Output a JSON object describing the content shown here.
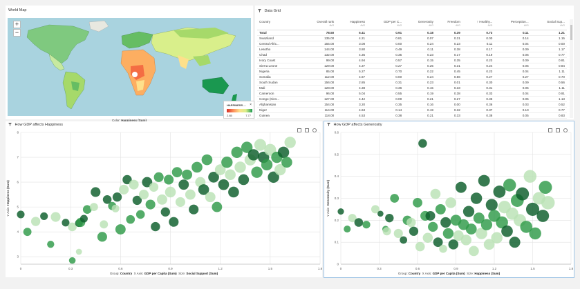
{
  "map": {
    "title": "World Map",
    "zoom_in": "+",
    "zoom_out": "−",
    "legend_title": "HAPPINESS ...",
    "legend_close": "×",
    "legend_min": "2.85",
    "legend_max": "7.77",
    "attribution": "Leaflet | © Op",
    "color_prefix": "Color:",
    "color_value": "Happiness (Sum)"
  },
  "grid": {
    "title": "Data Grid",
    "columns": [
      {
        "label": "Country",
        "agg": ""
      },
      {
        "label": "Overall rank",
        "agg": "AVG"
      },
      {
        "label": "Happiness",
        "agg": "AVG"
      },
      {
        "label": "GDP per C...",
        "agg": "AVG"
      },
      {
        "label": "Generosity",
        "agg": "AVG"
      },
      {
        "label": "Freedom",
        "agg": "AVG"
      },
      {
        "label": "↑ Healthy...",
        "agg": "AVG"
      },
      {
        "label": "Perception...",
        "agg": "AVG"
      },
      {
        "label": "Social Sup...",
        "agg": "AVG"
      }
    ],
    "rows": [
      [
        "Total",
        "78.50",
        "5.41",
        "0.91",
        "0.18",
        "0.39",
        "0.73",
        "0.11",
        "1.21"
      ],
      [
        "Swaziland",
        "135.00",
        "4.21",
        "0.81",
        "0.07",
        "0.31",
        "0.00",
        "0.14",
        "1.15"
      ],
      [
        "Central Afric...",
        "155.00",
        "3.08",
        "0.00",
        "0.24",
        "0.23",
        "0.11",
        "0.04",
        "0.00"
      ],
      [
        "Lesotho",
        "144.00",
        "3.80",
        "0.49",
        "0.11",
        "0.38",
        "0.17",
        "0.09",
        "1.17"
      ],
      [
        "Chad",
        "132.00",
        "4.35",
        "0.35",
        "0.23",
        "0.17",
        "0.19",
        "0.06",
        "0.77"
      ],
      [
        "Ivory Coast",
        "99.00",
        "4.94",
        "0.57",
        "0.15",
        "0.35",
        "0.23",
        "0.09",
        "0.81"
      ],
      [
        "Sierra Leone",
        "129.00",
        "4.37",
        "0.27",
        "0.25",
        "0.31",
        "0.24",
        "0.05",
        "0.84"
      ],
      [
        "Nigeria",
        "85.00",
        "5.27",
        "0.70",
        "0.22",
        "0.45",
        "0.23",
        "0.04",
        "1.11"
      ],
      [
        "Somalia",
        "112.00",
        "4.67",
        "0.00",
        "0.24",
        "0.56",
        "0.27",
        "0.27",
        "0.70"
      ],
      [
        "South Sudan",
        "156.00",
        "2.85",
        "0.31",
        "0.23",
        "0.01",
        "0.30",
        "0.09",
        "0.56"
      ],
      [
        "Mali",
        "128.00",
        "4.38",
        "0.36",
        "0.15",
        "0.33",
        "0.31",
        "0.05",
        "1.11"
      ],
      [
        "Cameroon",
        "96.00",
        "5.04",
        "0.55",
        "0.19",
        "0.38",
        "0.33",
        "0.04",
        "0.91"
      ],
      [
        "Congo (Kins...",
        "127.00",
        "4.42",
        "0.09",
        "0.21",
        "0.27",
        "0.36",
        "0.05",
        "1.13"
      ],
      [
        "Afghanistan",
        "154.00",
        "3.20",
        "0.35",
        "0.16",
        "0.00",
        "0.36",
        "0.03",
        "0.52"
      ],
      [
        "Niger",
        "114.00",
        "4.63",
        "0.14",
        "0.19",
        "0.32",
        "0.37",
        "0.10",
        "0.77"
      ],
      [
        "Guinea",
        "118.00",
        "4.53",
        "0.38",
        "0.21",
        "0.33",
        "0.38",
        "0.05",
        "0.83"
      ]
    ]
  },
  "chart1": {
    "title": "How GDP affects Happiness",
    "ylabel_prefix": "Y Axis:",
    "ylabel_value": "Happiness (Sum)",
    "footer_group_prefix": "Group:",
    "footer_group": "Country",
    "footer_x_prefix": "X Axis:",
    "footer_x": "GDP per Capita (Sum)",
    "footer_size_prefix": "Size:",
    "footer_size": "Social Support (Sum)"
  },
  "chart2": {
    "title": "How GDP affects Generosity",
    "ylabel_prefix": "Y Axis:",
    "ylabel_value": "Generosity (Sum)",
    "footer_group_prefix": "Group:",
    "footer_group": "Country",
    "footer_x_prefix": "X Axis:",
    "footer_x": "GDP per Capita (Sum)",
    "footer_size_prefix": "Size:",
    "footer_size": "Happiness (Sum)"
  },
  "colors": {
    "dark": "#0b5d2a",
    "mid": "#2e9a48",
    "light": "#b9e2b5"
  },
  "chart_data": [
    {
      "type": "scatter",
      "title": "How GDP affects Happiness",
      "xlabel": "GDP per Capita (Sum)",
      "ylabel": "Happiness (Sum)",
      "xlim": [
        0,
        1.8
      ],
      "ylim": [
        2.7,
        8.0
      ],
      "x_ticks": [
        "0",
        "0.3",
        "0.6",
        "0.9",
        "1.2",
        "1.5",
        "1.8"
      ],
      "y_ticks": [
        "3",
        "4",
        "5",
        "6",
        "7",
        "8"
      ],
      "grid": true,
      "points": [
        [
          0.0,
          4.7,
          0.8
        ],
        [
          0.04,
          4.0,
          0.9
        ],
        [
          0.09,
          4.42,
          1.1
        ],
        [
          0.14,
          4.63,
          0.8
        ],
        [
          0.18,
          3.5,
          0.7
        ],
        [
          0.21,
          4.6,
          1.2
        ],
        [
          0.27,
          4.37,
          0.8
        ],
        [
          0.31,
          2.85,
          0.6
        ],
        [
          0.31,
          4.2,
          1.0
        ],
        [
          0.35,
          4.35,
          0.8
        ],
        [
          0.36,
          4.38,
          1.1
        ],
        [
          0.35,
          3.2,
          0.5
        ],
        [
          0.38,
          4.53,
          0.8
        ],
        [
          0.4,
          4.9,
          1.0
        ],
        [
          0.44,
          5.0,
          0.9
        ],
        [
          0.45,
          5.6,
          1.2
        ],
        [
          0.49,
          3.8,
          1.2
        ],
        [
          0.5,
          4.3,
          0.9
        ],
        [
          0.52,
          5.3,
          1.0
        ],
        [
          0.55,
          5.04,
          0.9
        ],
        [
          0.57,
          4.94,
          0.8
        ],
        [
          0.58,
          5.4,
          1.1
        ],
        [
          0.6,
          4.1,
          1.3
        ],
        [
          0.62,
          5.7,
          1.2
        ],
        [
          0.64,
          6.1,
          1.1
        ],
        [
          0.66,
          4.5,
          1.0
        ],
        [
          0.68,
          5.9,
          1.2
        ],
        [
          0.7,
          5.27,
          1.1
        ],
        [
          0.72,
          4.7,
          1.0
        ],
        [
          0.74,
          5.5,
          1.2
        ],
        [
          0.76,
          6.0,
          1.3
        ],
        [
          0.78,
          5.1,
          1.2
        ],
        [
          0.8,
          5.8,
          1.1
        ],
        [
          0.81,
          4.21,
          1.1
        ],
        [
          0.83,
          6.2,
          1.2
        ],
        [
          0.85,
          5.3,
          1.3
        ],
        [
          0.87,
          4.8,
          1.1
        ],
        [
          0.89,
          6.1,
          1.2
        ],
        [
          0.9,
          5.6,
          1.4
        ],
        [
          0.92,
          4.4,
          1.2
        ],
        [
          0.94,
          6.4,
          1.3
        ],
        [
          0.96,
          5.2,
          1.2
        ],
        [
          0.98,
          5.9,
          1.3
        ],
        [
          1.0,
          6.3,
          1.3
        ],
        [
          1.02,
          5.5,
          1.3
        ],
        [
          1.04,
          4.9,
          1.2
        ],
        [
          1.06,
          6.6,
          1.4
        ],
        [
          1.08,
          6.0,
          1.3
        ],
        [
          1.1,
          5.7,
          1.4
        ],
        [
          1.12,
          6.9,
          1.4
        ],
        [
          1.14,
          5.4,
          1.3
        ],
        [
          1.16,
          6.2,
          1.4
        ],
        [
          1.18,
          5.0,
          1.3
        ],
        [
          1.2,
          6.5,
          1.4
        ],
        [
          1.22,
          5.9,
          1.4
        ],
        [
          1.24,
          6.8,
          1.5
        ],
        [
          1.26,
          6.3,
          1.4
        ],
        [
          1.28,
          5.6,
          1.4
        ],
        [
          1.3,
          7.2,
          1.5
        ],
        [
          1.32,
          6.6,
          1.5
        ],
        [
          1.34,
          6.1,
          1.4
        ],
        [
          1.36,
          7.4,
          1.5
        ],
        [
          1.38,
          6.9,
          1.5
        ],
        [
          1.4,
          7.1,
          1.5
        ],
        [
          1.42,
          6.4,
          1.5
        ],
        [
          1.44,
          7.5,
          1.6
        ],
        [
          1.46,
          7.0,
          1.5
        ],
        [
          1.48,
          6.7,
          1.5
        ],
        [
          1.5,
          7.3,
          1.6
        ],
        [
          1.52,
          6.2,
          1.5
        ],
        [
          1.54,
          7.0,
          1.5
        ],
        [
          1.56,
          6.5,
          1.5
        ],
        [
          1.58,
          7.2,
          1.5
        ],
        [
          1.6,
          6.8,
          1.4
        ],
        [
          1.62,
          7.6,
          1.5
        ]
      ]
    },
    {
      "type": "scatter",
      "title": "How GDP affects Generosity",
      "xlabel": "GDP per Capita (Sum)",
      "ylabel": "Generosity (Sum)",
      "xlim": [
        0,
        1.8
      ],
      "ylim": [
        0,
        0.6
      ],
      "x_ticks": [
        "0",
        "0.3",
        "0.6",
        "0.9",
        "1.2",
        "1.5",
        "1.8"
      ],
      "y_ticks": [
        "0",
        "0.1",
        "0.2",
        "0.3",
        "0.4",
        "0.5",
        "0.6"
      ],
      "grid": true,
      "points": [
        [
          0.0,
          0.24,
          3.08
        ],
        [
          0.05,
          0.16,
          3.5
        ],
        [
          0.09,
          0.21,
          4.42
        ],
        [
          0.14,
          0.19,
          4.63
        ],
        [
          0.2,
          0.18,
          4.0
        ],
        [
          0.27,
          0.25,
          4.37
        ],
        [
          0.31,
          0.23,
          2.85
        ],
        [
          0.35,
          0.16,
          3.2
        ],
        [
          0.36,
          0.15,
          4.38
        ],
        [
          0.38,
          0.21,
          4.53
        ],
        [
          0.42,
          0.3,
          4.7
        ],
        [
          0.45,
          0.14,
          4.9
        ],
        [
          0.49,
          0.11,
          3.8
        ],
        [
          0.52,
          0.2,
          5.0
        ],
        [
          0.55,
          0.19,
          5.04
        ],
        [
          0.57,
          0.15,
          4.94
        ],
        [
          0.6,
          0.28,
          5.2
        ],
        [
          0.62,
          0.08,
          5.1
        ],
        [
          0.64,
          0.55,
          4.6
        ],
        [
          0.66,
          0.22,
          5.3
        ],
        [
          0.68,
          0.12,
          5.5
        ],
        [
          0.7,
          0.22,
          5.27
        ],
        [
          0.72,
          0.17,
          5.4
        ],
        [
          0.74,
          0.32,
          5.6
        ],
        [
          0.76,
          0.1,
          5.2
        ],
        [
          0.78,
          0.25,
          5.7
        ],
        [
          0.8,
          0.07,
          4.21
        ],
        [
          0.82,
          0.19,
          5.8
        ],
        [
          0.84,
          0.14,
          5.9
        ],
        [
          0.86,
          0.28,
          6.0
        ],
        [
          0.88,
          0.09,
          5.5
        ],
        [
          0.9,
          0.2,
          6.1
        ],
        [
          0.92,
          0.13,
          5.8
        ],
        [
          0.94,
          0.35,
          6.2
        ],
        [
          0.96,
          0.18,
          6.0
        ],
        [
          0.98,
          0.11,
          5.9
        ],
        [
          1.0,
          0.24,
          6.3
        ],
        [
          1.02,
          0.16,
          6.1
        ],
        [
          1.04,
          0.06,
          5.6
        ],
        [
          1.06,
          0.3,
          6.4
        ],
        [
          1.08,
          0.21,
          6.2
        ],
        [
          1.1,
          0.14,
          6.5
        ],
        [
          1.12,
          0.38,
          6.6
        ],
        [
          1.14,
          0.18,
          6.3
        ],
        [
          1.16,
          0.09,
          6.0
        ],
        [
          1.18,
          0.27,
          6.7
        ],
        [
          1.2,
          0.22,
          6.8
        ],
        [
          1.22,
          0.12,
          6.4
        ],
        [
          1.24,
          0.33,
          7.0
        ],
        [
          1.26,
          0.19,
          6.9
        ],
        [
          1.28,
          0.26,
          7.2
        ],
        [
          1.3,
          0.15,
          6.5
        ],
        [
          1.32,
          0.36,
          7.3
        ],
        [
          1.34,
          0.23,
          7.0
        ],
        [
          1.36,
          0.1,
          6.2
        ],
        [
          1.38,
          0.29,
          7.4
        ],
        [
          1.4,
          0.2,
          7.1
        ],
        [
          1.42,
          0.32,
          7.5
        ],
        [
          1.45,
          0.17,
          6.9
        ],
        [
          1.48,
          0.4,
          7.3
        ],
        [
          1.5,
          0.25,
          7.6
        ],
        [
          1.52,
          0.14,
          6.8
        ],
        [
          1.55,
          0.3,
          7.2
        ],
        [
          1.58,
          0.22,
          7.0
        ],
        [
          1.6,
          0.35,
          7.5
        ],
        [
          1.62,
          0.28,
          7.77
        ]
      ]
    }
  ]
}
